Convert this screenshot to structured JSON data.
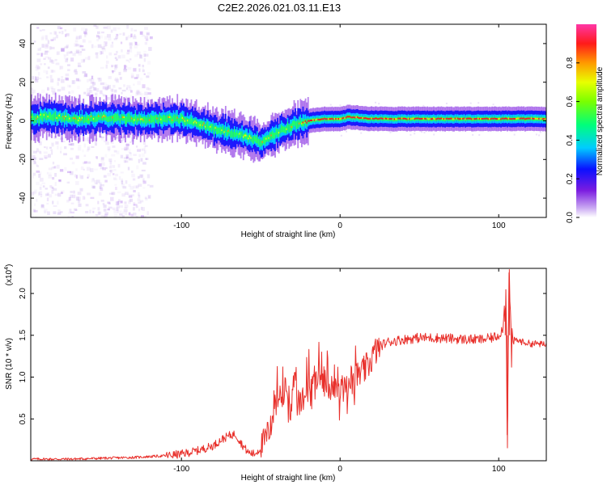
{
  "title": "C2E2.2026.021.03.11.E13",
  "chart_data": [
    {
      "type": "heatmap",
      "xlabel": "Height of straight line (km)",
      "ylabel": "Frequency (Hz)",
      "xlim": [
        -195,
        130
      ],
      "ylim": [
        -50,
        50
      ],
      "xticks": [
        -100,
        0,
        100
      ],
      "yticks": [
        -40,
        -20,
        0,
        20,
        40
      ],
      "colorbar": {
        "label": "Normalized spectral amplitude",
        "range": [
          0,
          1
        ],
        "ticks": [
          "0.0",
          "0.2",
          "0.4",
          "0.6",
          "0.8"
        ]
      },
      "ridge_frequency": [
        {
          "x": -190,
          "y": 2
        },
        {
          "x": -180,
          "y": 2
        },
        {
          "x": -170,
          "y": 1
        },
        {
          "x": -160,
          "y": 1
        },
        {
          "x": -150,
          "y": 2
        },
        {
          "x": -140,
          "y": 1
        },
        {
          "x": -130,
          "y": 1
        },
        {
          "x": -120,
          "y": 1
        },
        {
          "x": -110,
          "y": 1
        },
        {
          "x": -100,
          "y": 1
        },
        {
          "x": -90,
          "y": -1
        },
        {
          "x": -80,
          "y": -4
        },
        {
          "x": -70,
          "y": -6
        },
        {
          "x": -60,
          "y": -8
        },
        {
          "x": -50,
          "y": -11
        },
        {
          "x": -45,
          "y": -8
        },
        {
          "x": -40,
          "y": -6
        },
        {
          "x": -35,
          "y": -4
        },
        {
          "x": -30,
          "y": -2
        },
        {
          "x": -20,
          "y": 0
        },
        {
          "x": -10,
          "y": 1
        },
        {
          "x": 0,
          "y": 1
        },
        {
          "x": 5,
          "y": 2
        },
        {
          "x": 20,
          "y": 1
        },
        {
          "x": 40,
          "y": 1
        },
        {
          "x": 60,
          "y": 1
        },
        {
          "x": 80,
          "y": 1
        },
        {
          "x": 100,
          "y": 1
        },
        {
          "x": 110,
          "y": 1
        },
        {
          "x": 130,
          "y": 1
        }
      ]
    },
    {
      "type": "line",
      "xlabel": "Height of straight line (km)",
      "ylabel": "SNR (10 * v/v)",
      "y_multiplier_label": "(x10",
      "y_multiplier_exp": "4",
      "y_multiplier_close": ")",
      "xlim": [
        -195,
        130
      ],
      "ylim": [
        0,
        2.3
      ],
      "xticks": [
        -100,
        0,
        100
      ],
      "yticks": [
        0.5,
        1.0,
        1.5,
        2.0
      ],
      "yticklabels": [
        "0.5",
        "1.0",
        "1.5",
        "2.0"
      ],
      "color": "#e8302b",
      "series": [
        {
          "points": [
            {
              "x": -195,
              "y": 0.02
            },
            {
              "x": -170,
              "y": 0.02
            },
            {
              "x": -150,
              "y": 0.03
            },
            {
              "x": -130,
              "y": 0.04
            },
            {
              "x": -110,
              "y": 0.06
            },
            {
              "x": -100,
              "y": 0.08
            },
            {
              "x": -90,
              "y": 0.12
            },
            {
              "x": -80,
              "y": 0.18
            },
            {
              "x": -75,
              "y": 0.25
            },
            {
              "x": -70,
              "y": 0.3
            },
            {
              "x": -66,
              "y": 0.32
            },
            {
              "x": -62,
              "y": 0.2
            },
            {
              "x": -58,
              "y": 0.1
            },
            {
              "x": -54,
              "y": 0.08
            },
            {
              "x": -50,
              "y": 0.15
            },
            {
              "x": -46,
              "y": 0.3
            },
            {
              "x": -42,
              "y": 0.55
            },
            {
              "x": -38,
              "y": 0.8
            },
            {
              "x": -34,
              "y": 0.85
            },
            {
              "x": -30,
              "y": 0.75
            },
            {
              "x": -26,
              "y": 0.65
            },
            {
              "x": -22,
              "y": 0.8
            },
            {
              "x": -18,
              "y": 0.95
            },
            {
              "x": -14,
              "y": 1.0
            },
            {
              "x": -10,
              "y": 0.95
            },
            {
              "x": -6,
              "y": 0.9
            },
            {
              "x": -2,
              "y": 0.9
            },
            {
              "x": 2,
              "y": 0.85
            },
            {
              "x": 6,
              "y": 0.95
            },
            {
              "x": 10,
              "y": 1.0
            },
            {
              "x": 14,
              "y": 1.05
            },
            {
              "x": 18,
              "y": 1.15
            },
            {
              "x": 22,
              "y": 1.3
            },
            {
              "x": 26,
              "y": 1.38
            },
            {
              "x": 30,
              "y": 1.42
            },
            {
              "x": 40,
              "y": 1.45
            },
            {
              "x": 50,
              "y": 1.47
            },
            {
              "x": 60,
              "y": 1.47
            },
            {
              "x": 70,
              "y": 1.46
            },
            {
              "x": 80,
              "y": 1.45
            },
            {
              "x": 90,
              "y": 1.45
            },
            {
              "x": 96,
              "y": 1.47
            },
            {
              "x": 100,
              "y": 1.5
            },
            {
              "x": 103,
              "y": 1.6
            },
            {
              "x": 104.5,
              "y": 2.05
            },
            {
              "x": 105.5,
              "y": 0.15
            },
            {
              "x": 106.5,
              "y": 2.25
            },
            {
              "x": 108,
              "y": 1.3
            },
            {
              "x": 110,
              "y": 1.45
            },
            {
              "x": 115,
              "y": 1.42
            },
            {
              "x": 120,
              "y": 1.4
            },
            {
              "x": 125,
              "y": 1.4
            },
            {
              "x": 130,
              "y": 1.38
            }
          ]
        }
      ]
    }
  ]
}
